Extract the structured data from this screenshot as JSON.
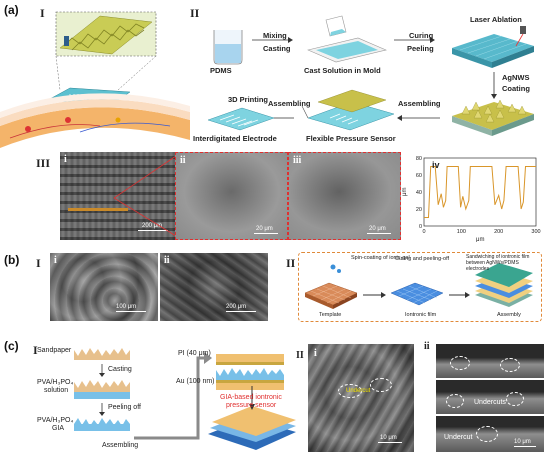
{
  "a": {
    "letter": "(a)",
    "I": "I",
    "II": "II",
    "III": "III",
    "flow": {
      "pdms": "PDMS",
      "mixing": "Mixing",
      "casting": "Casting",
      "cast_solution": "Cast Solution in Mold",
      "curing": "Curing",
      "peeling": "Peeling",
      "laser_ablation": "Laser Ablation",
      "agnws": "AgNWS",
      "coating": "Coating",
      "printing": "3D Printing",
      "interdigitated": "Interdigitated Electrode",
      "assembling1": "Assembling",
      "sensor": "Flexible Pressure Sensor",
      "assembling2": "Assembling"
    },
    "micro": {
      "i": "i",
      "ii": "ii",
      "iii": "iii",
      "iv": "iv",
      "sb_i": "200 μm",
      "sb_ii": "20 μm",
      "sb_iii": "20 μm"
    },
    "profile": {
      "ylabel": "μm",
      "xlabel": "μm",
      "yticks": [
        "0",
        "20",
        "40",
        "60",
        "80"
      ],
      "xticks": [
        "0",
        "100",
        "200",
        "300"
      ]
    }
  },
  "b": {
    "letter": "(b)",
    "I": "I",
    "i": "i",
    "ii": "ii",
    "sb_i": "100 μm",
    "sb_ii": "200 μm",
    "II": "II",
    "spin": "Spin-coating of ionic-gel",
    "curing": "Curing and peeling-off",
    "sandwich": "Sandwiching of iontronic film between AgNWs/PDMS electrodes",
    "template": "Template",
    "film": "Iontronic film",
    "assembly": "Assembly"
  },
  "c": {
    "letter": "(c)",
    "I": "I",
    "sandpaper": "Sandpaper",
    "casting": "Casting",
    "pva_sol": "PVA/H₃PO₄",
    "pva_sol2": "solution",
    "peeling": "Peeling off",
    "pva_gia": "PVA/H₃PO₄",
    "gia": "GIA",
    "assembling": "Assembling",
    "pi": "PI (40 μm)",
    "au": "Au (100 nm)",
    "sensor1": "GIA-based iontronic",
    "sensor2": "pressure sensor",
    "II": "II",
    "i": "i",
    "ii": "ii",
    "undercut": "Undercut",
    "undercuts": "Undercuts",
    "undercut2": "Undercut",
    "undercut3": "Undercut",
    "sb": "10 μm",
    "sb2": "10 μm"
  },
  "chart_data": {
    "type": "line",
    "title": "",
    "xlabel": "μm",
    "ylabel": "μm",
    "xlim": [
      0,
      300
    ],
    "ylim": [
      0,
      80
    ],
    "series": [
      {
        "x": [
          0,
          12,
          18,
          22,
          30,
          38,
          46,
          52,
          58,
          62,
          66,
          80,
          92,
          98,
          104,
          112,
          120,
          124,
          130,
          138,
          150,
          170,
          182,
          190,
          200,
          208,
          214,
          220,
          228,
          240,
          252,
          260,
          266,
          272,
          280,
          292,
          300
        ],
        "values": [
          10,
          10,
          70,
          70,
          70,
          25,
          38,
          22,
          30,
          70,
          70,
          70,
          70,
          22,
          35,
          20,
          30,
          70,
          70,
          70,
          70,
          70,
          70,
          25,
          36,
          20,
          30,
          70,
          70,
          70,
          70,
          20,
          28,
          70,
          70,
          70,
          70
        ]
      }
    ]
  }
}
